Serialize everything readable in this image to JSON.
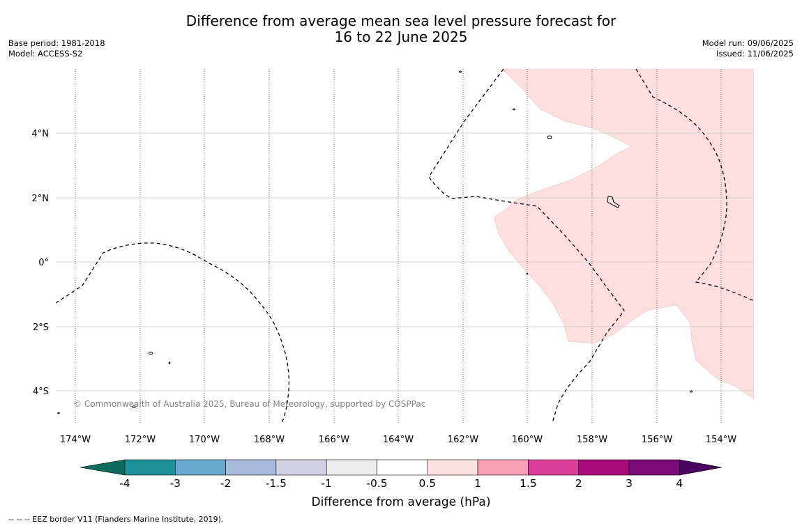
{
  "title_line1": "Difference from average mean sea level pressure forecast for",
  "title_line2": "16 to 22 June 2025",
  "base_period": "Base period: 1981-2018",
  "model": "Model: ACCESS-S2",
  "model_run": "Model run: 09/06/2025",
  "issued": "Issued: 11/06/2025",
  "copyright": "© Commonwealth of Australia 2025, Bureau of Meteorology, supported by COSPPac",
  "footer": "-- -- -- EEZ border V11 (Flanders Marine Institute, 2019).",
  "map": {
    "lat_labels": [
      "4°N",
      "2°N",
      "0°",
      "2°S",
      "4°S"
    ],
    "lon_labels": [
      "174°W",
      "172°W",
      "170°W",
      "168°W",
      "166°W",
      "164°W",
      "162°W",
      "160°W",
      "158°W",
      "156°W",
      "154°W"
    ],
    "anomaly_region_color": "#fddfdf",
    "anomaly_region_class": "0.5 to 1"
  },
  "colorbar": {
    "title": "Difference from average (hPa)",
    "labels": [
      "-4",
      "-3",
      "-2",
      "-1.5",
      "-1",
      "-0.5",
      "0.5",
      "1",
      "1.5",
      "2",
      "3",
      "4"
    ],
    "colors": [
      "#0d6b5e",
      "#1f9399",
      "#6aaad0",
      "#a6bcdc",
      "#d1d1e6",
      "#eeeeee",
      "#ffffff",
      "#fde0e0",
      "#f99fb6",
      "#dc3f97",
      "#ac0b7e",
      "#7a0a77",
      "#4b0260"
    ]
  }
}
